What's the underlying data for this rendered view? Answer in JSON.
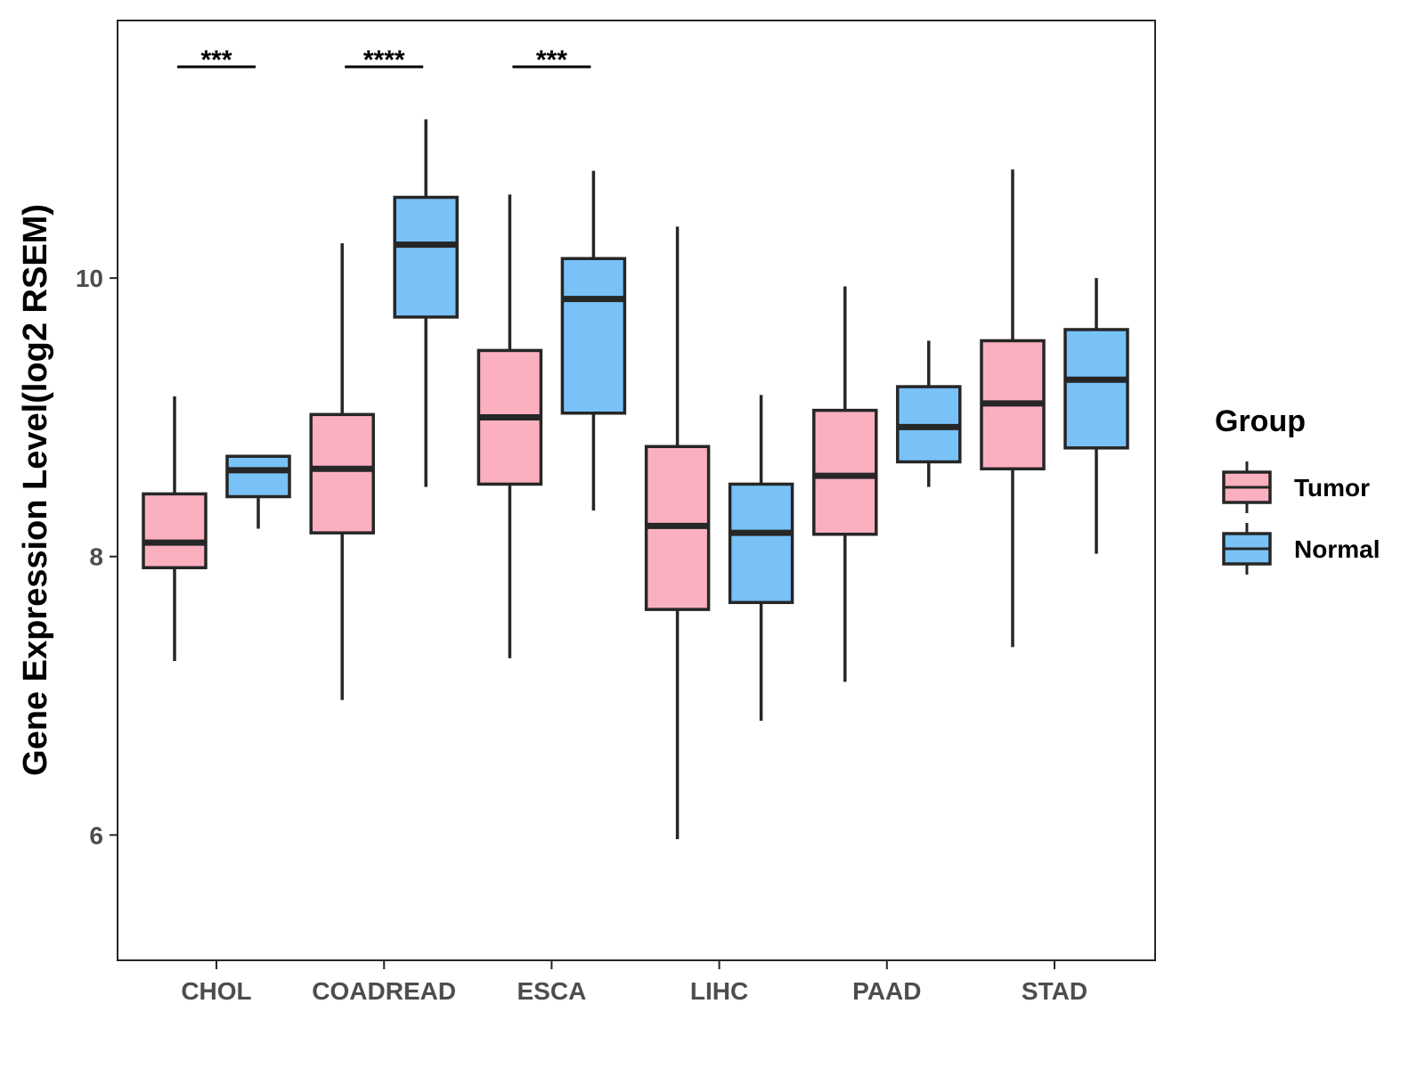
{
  "chart_data": {
    "type": "boxplot",
    "title": "",
    "xlabel": "",
    "ylabel": "Gene Expression Level(log2 RSEM)",
    "ylim": [
      5.1,
      11.85
    ],
    "yticks": [
      6,
      8,
      10
    ],
    "categories": [
      "CHOL",
      "COADREAD",
      "ESCA",
      "LIHC",
      "PAAD",
      "STAD"
    ],
    "legend": {
      "title": "Group",
      "position": "right",
      "entries": [
        "Tumor",
        "Normal"
      ]
    },
    "colors": {
      "Tumor": "#FBB0C0",
      "Normal": "#78C2F8",
      "outline": "#262626"
    },
    "series": [
      {
        "name": "Tumor",
        "boxes": [
          {
            "category": "CHOL",
            "min": 7.25,
            "q1": 7.92,
            "median": 8.1,
            "q3": 8.45,
            "max": 9.15
          },
          {
            "category": "COADREAD",
            "min": 6.97,
            "q1": 8.17,
            "median": 8.63,
            "q3": 9.02,
            "max": 10.25
          },
          {
            "category": "ESCA",
            "min": 7.27,
            "q1": 8.52,
            "median": 9.0,
            "q3": 9.48,
            "max": 10.6
          },
          {
            "category": "LIHC",
            "min": 5.97,
            "q1": 7.62,
            "median": 8.22,
            "q3": 8.79,
            "max": 10.37
          },
          {
            "category": "PAAD",
            "min": 7.1,
            "q1": 8.16,
            "median": 8.58,
            "q3": 9.05,
            "max": 9.94
          },
          {
            "category": "STAD",
            "min": 7.35,
            "q1": 8.63,
            "median": 9.1,
            "q3": 9.55,
            "max": 10.78
          }
        ]
      },
      {
        "name": "Normal",
        "boxes": [
          {
            "category": "CHOL",
            "min": 8.2,
            "q1": 8.43,
            "median": 8.62,
            "q3": 8.72,
            "max": 8.72
          },
          {
            "category": "COADREAD",
            "min": 8.5,
            "q1": 9.72,
            "median": 10.24,
            "q3": 10.58,
            "max": 11.14
          },
          {
            "category": "ESCA",
            "min": 8.33,
            "q1": 9.03,
            "median": 9.85,
            "q3": 10.14,
            "max": 10.77
          },
          {
            "category": "LIHC",
            "min": 6.82,
            "q1": 7.67,
            "median": 8.17,
            "q3": 8.52,
            "max": 9.16
          },
          {
            "category": "PAAD",
            "min": 8.5,
            "q1": 8.68,
            "median": 8.93,
            "q3": 9.22,
            "max": 9.55
          },
          {
            "category": "STAD",
            "min": 8.02,
            "q1": 8.78,
            "median": 9.27,
            "q3": 9.63,
            "max": 10.0
          }
        ]
      }
    ],
    "annotations": [
      {
        "category": "CHOL",
        "label": "***"
      },
      {
        "category": "COADREAD",
        "label": "****"
      },
      {
        "category": "ESCA",
        "label": "***"
      }
    ]
  }
}
